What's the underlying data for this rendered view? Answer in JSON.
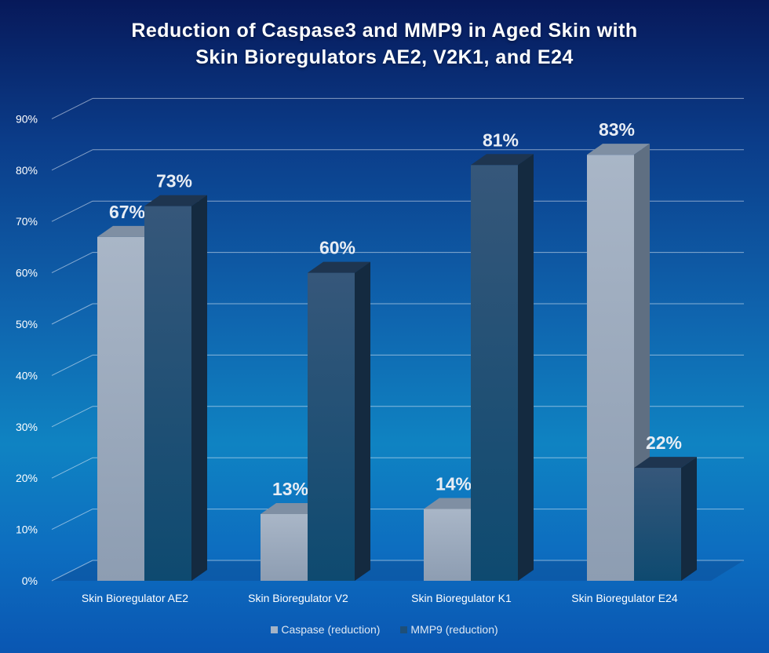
{
  "chart_data": {
    "type": "bar",
    "title_lines": [
      "Reduction of Caspase3 and MMP9 in Aged Skin with",
      "Skin Bioregulators AE2, V2K1, and E24"
    ],
    "categories": [
      "Skin Bioregulator AE2",
      "Skin Bioregulator V2",
      "Skin Bioregulator K1",
      "Skin Bioregulator E24"
    ],
    "series": [
      {
        "name": "Caspase (reduction)",
        "color": "#a4b3c6",
        "values": [
          67,
          13,
          14,
          83
        ],
        "labels": [
          "67%",
          "13%",
          "14%",
          "83%"
        ]
      },
      {
        "name": "MMP9 (reduction)",
        "color": "#1d4f79",
        "values": [
          73,
          60,
          81,
          22
        ],
        "labels": [
          "73%",
          "60%",
          "81%",
          "22%"
        ]
      }
    ],
    "yticks": [
      "0%",
      "10%",
      "20%",
      "30%",
      "40%",
      "50%",
      "60%",
      "70%",
      "80%",
      "90%"
    ],
    "ylim": [
      0,
      90
    ],
    "xlabel": "",
    "ylabel": "",
    "grid": true,
    "legend_position": "bottom"
  }
}
